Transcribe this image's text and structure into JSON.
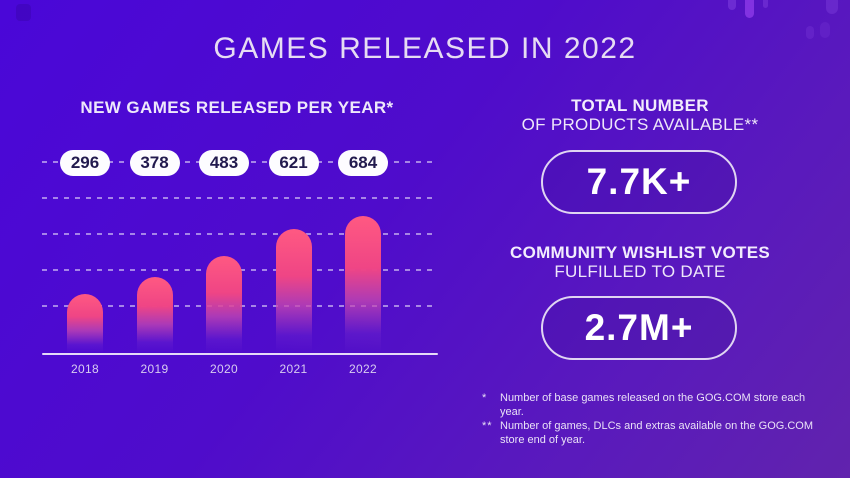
{
  "title": "GAMES RELEASED IN 2022",
  "chart_data": {
    "type": "bar",
    "title": "NEW GAMES RELEASED PER YEAR*",
    "categories": [
      "2018",
      "2019",
      "2020",
      "2021",
      "2022"
    ],
    "values": [
      296,
      378,
      483,
      621,
      684
    ],
    "value_labels": [
      "296",
      "378",
      "483",
      "621",
      "684"
    ],
    "xlabel": "",
    "ylabel": "",
    "ylim": [
      0,
      700
    ],
    "grid": "horizontal-dashed",
    "legend": "none",
    "bar_top_color": "#ff5982",
    "bar_fade_color": "rgba(90,26,188,0)"
  },
  "stats": [
    {
      "heading_bold": "TOTAL NUMBER",
      "heading_regular": "OF PRODUCTS AVAILABLE**",
      "value": "7.7K+"
    },
    {
      "heading_bold": "COMMUNITY WISHLIST VOTES",
      "heading_regular": "FULFILLED TO DATE",
      "value": "2.7M+"
    }
  ],
  "footnotes": [
    {
      "marker": "*",
      "text": "Number of base games released on the GOG.COM store each year."
    },
    {
      "marker": "**",
      "text": "Number of games, DLCs and extras available on the GOG.COM store end of year."
    }
  ],
  "colors": {
    "background_start": "#4a07d8",
    "background_mid": "#4f0ccb",
    "background_end": "#6123ad",
    "bar_top": "#ff5982",
    "bar_mid": "#ef4585",
    "pill_bg": "#fdfcff",
    "pill_text": "#221a4e",
    "text_light": "#ece5f9",
    "outline": "#e0d5f2"
  }
}
